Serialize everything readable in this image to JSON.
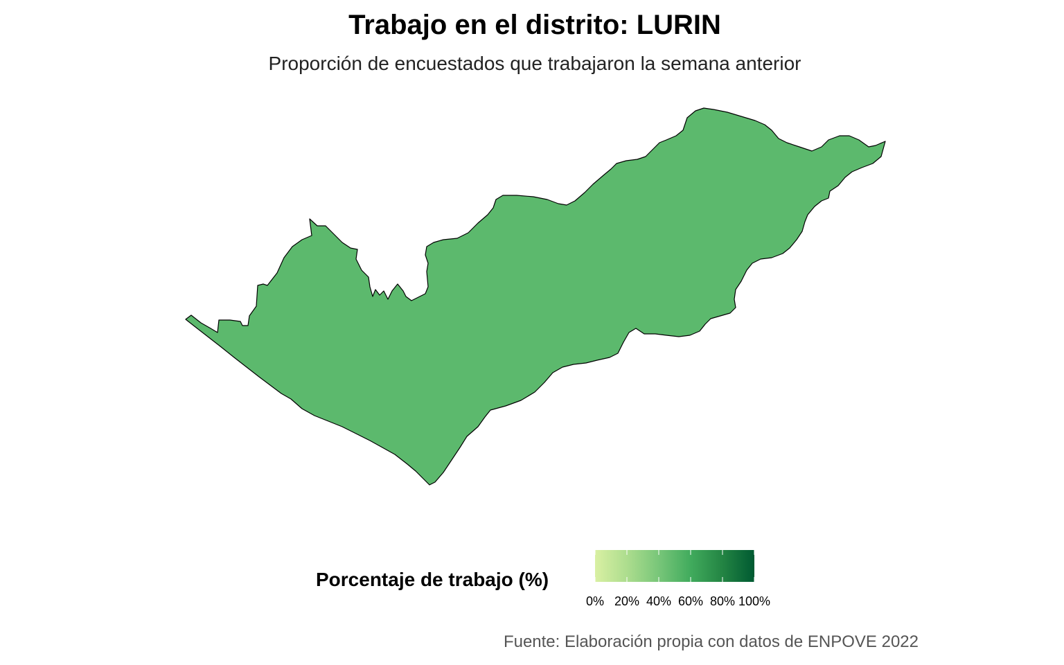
{
  "title": "Trabajo en el distrito: LURIN",
  "subtitle": "Proporción de encuestados que trabajaron la semana anterior",
  "caption": "Fuente: Elaboración propia con datos de ENPOVE 2022",
  "legend": {
    "title": "Porcentaje de trabajo (%)",
    "ticks": [
      "0%",
      "20%",
      "40%",
      "60%",
      "80%",
      "100%"
    ],
    "gradient_colors": [
      "#d9f0a3",
      "#addd8e",
      "#78c679",
      "#41ab5d",
      "#238443",
      "#005a32"
    ]
  },
  "map": {
    "region_name": "LURIN",
    "value_percent": 62,
    "fill_color": "#5cb96d",
    "stroke_color": "#000000"
  }
}
